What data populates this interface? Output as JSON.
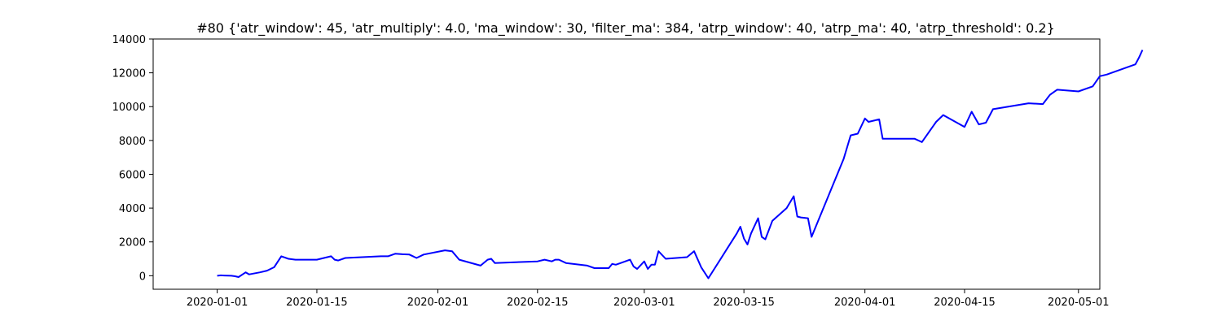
{
  "chart_data": {
    "type": "line",
    "title": "#80 {'atr_window': 45, 'atr_multiply': 4.0, 'ma_window': 30, 'filter_ma': 384, 'atrp_window': 40, 'atrp_ma': 40, 'atrp_threshold': 0.2}",
    "xlabel": "",
    "ylabel": "",
    "xlim": [
      "2019-12-23",
      "2020-05-04"
    ],
    "ylim": [
      -800,
      14000
    ],
    "x_ticks": [
      "2020-01-01",
      "2020-01-15",
      "2020-02-01",
      "2020-02-15",
      "2020-03-01",
      "2020-03-15",
      "2020-04-01",
      "2020-04-15",
      "2020-05-01"
    ],
    "y_ticks": [
      0,
      2000,
      4000,
      6000,
      8000,
      10000,
      12000,
      14000
    ],
    "grid": false,
    "line_color": "#0000ff",
    "series": [
      {
        "points": [
          [
            "2020-01-01",
            0
          ],
          [
            "2020-01-01",
            20
          ],
          [
            "2020-01-02",
            10
          ],
          [
            "2020-01-03",
            0
          ],
          [
            "2020-01-03",
            -30
          ],
          [
            "2020-01-04",
            -80
          ],
          [
            "2020-01-05",
            200
          ],
          [
            "2020-01-05",
            80
          ],
          [
            "2020-01-07",
            200
          ],
          [
            "2020-01-08",
            300
          ],
          [
            "2020-01-09",
            500
          ],
          [
            "2020-01-10",
            1150
          ],
          [
            "2020-01-11",
            1000
          ],
          [
            "2020-01-12",
            950
          ],
          [
            "2020-01-14",
            950
          ],
          [
            "2020-01-15",
            950
          ],
          [
            "2020-01-16",
            1050
          ],
          [
            "2020-01-17",
            1150
          ],
          [
            "2020-01-17",
            950
          ],
          [
            "2020-01-18",
            900
          ],
          [
            "2020-01-19",
            1050
          ],
          [
            "2020-01-24",
            1150
          ],
          [
            "2020-01-25",
            1150
          ],
          [
            "2020-01-26",
            1300
          ],
          [
            "2020-01-27",
            1270
          ],
          [
            "2020-01-28",
            1250
          ],
          [
            "2020-01-29",
            1050
          ],
          [
            "2020-01-30",
            1250
          ],
          [
            "2020-02-02",
            1500
          ],
          [
            "2020-02-03",
            1450
          ],
          [
            "2020-02-03",
            1200
          ],
          [
            "2020-02-04",
            950
          ],
          [
            "2020-02-07",
            600
          ],
          [
            "2020-02-08",
            950
          ],
          [
            "2020-02-08",
            1000
          ],
          [
            "2020-02-09",
            750
          ],
          [
            "2020-02-15",
            850
          ],
          [
            "2020-02-16",
            950
          ],
          [
            "2020-02-17",
            850
          ],
          [
            "2020-02-17",
            950
          ],
          [
            "2020-02-18",
            950
          ],
          [
            "2020-02-19",
            750
          ],
          [
            "2020-02-22",
            600
          ],
          [
            "2020-02-23",
            450
          ],
          [
            "2020-02-25",
            450
          ],
          [
            "2020-02-25",
            700
          ],
          [
            "2020-02-26",
            650
          ],
          [
            "2020-02-28",
            950
          ],
          [
            "2020-02-28",
            550
          ],
          [
            "2020-02-29",
            400
          ],
          [
            "2020-03-01",
            850
          ],
          [
            "2020-03-01",
            400
          ],
          [
            "2020-03-02",
            650
          ],
          [
            "2020-03-02",
            650
          ],
          [
            "2020-03-03",
            1450
          ],
          [
            "2020-03-04",
            1000
          ],
          [
            "2020-03-07",
            1100
          ],
          [
            "2020-03-08",
            1450
          ],
          [
            "2020-03-09",
            500
          ],
          [
            "2020-03-10",
            -150
          ],
          [
            "2020-03-14",
            2500
          ],
          [
            "2020-03-14",
            2900
          ],
          [
            "2020-03-15",
            2200
          ],
          [
            "2020-03-15",
            1850
          ],
          [
            "2020-03-16",
            2500
          ],
          [
            "2020-03-17",
            3400
          ],
          [
            "2020-03-17",
            2300
          ],
          [
            "2020-03-18",
            2150
          ],
          [
            "2020-03-19",
            3250
          ],
          [
            "2020-03-21",
            4000
          ],
          [
            "2020-03-22",
            4700
          ],
          [
            "2020-03-22",
            3500
          ],
          [
            "2020-03-23",
            3450
          ],
          [
            "2020-03-24",
            3400
          ],
          [
            "2020-03-24",
            2300
          ],
          [
            "2020-03-29",
            6900
          ],
          [
            "2020-03-30",
            8300
          ],
          [
            "2020-03-31",
            8400
          ],
          [
            "2020-04-01",
            9300
          ],
          [
            "2020-04-01",
            9100
          ],
          [
            "2020-04-03",
            9250
          ],
          [
            "2020-04-03",
            8100
          ],
          [
            "2020-04-08",
            8100
          ],
          [
            "2020-04-09",
            7900
          ],
          [
            "2020-04-11",
            9100
          ],
          [
            "2020-04-12",
            9500
          ],
          [
            "2020-04-15",
            8800
          ],
          [
            "2020-04-16",
            9700
          ],
          [
            "2020-04-17",
            8950
          ],
          [
            "2020-04-18",
            9050
          ],
          [
            "2020-04-19",
            9850
          ],
          [
            "2020-04-24",
            10200
          ],
          [
            "2020-04-26",
            10150
          ],
          [
            "2020-04-27",
            10700
          ],
          [
            "2020-04-28",
            11000
          ],
          [
            "2020-05-01",
            10900
          ],
          [
            "2020-05-03",
            11200
          ],
          [
            "2020-05-04",
            11800
          ],
          [
            "2020-05-05",
            11900
          ],
          [
            "2020-05-09",
            12500
          ],
          [
            "2020-05-09",
            12900
          ],
          [
            "2020-05-10",
            13350
          ]
        ]
      }
    ]
  }
}
